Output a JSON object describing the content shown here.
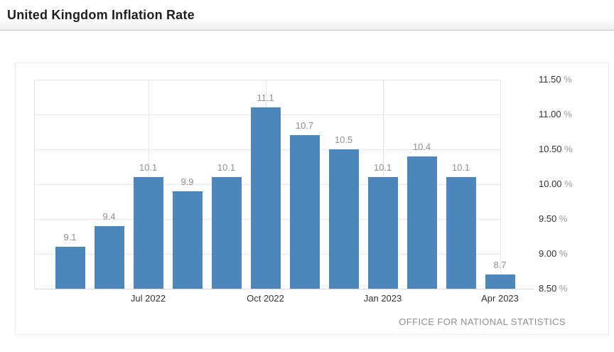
{
  "header": {
    "title": "United Kingdom Inflation Rate"
  },
  "chart": {
    "attribution": "OFFICE FOR NATIONAL STATISTICS",
    "colors": {
      "bar": "#4d86ba",
      "grid": "#e6e6e6",
      "baseline": "#d8d8d8",
      "data_label": "#8f8f8f",
      "tick_number": "#333333",
      "percent_suffix": "#999999",
      "attribution_text": "#8f8f8f",
      "title_text": "#1f1f1f"
    }
  },
  "chart_data": {
    "type": "bar",
    "title": "United Kingdom Inflation Rate",
    "values": [
      9.1,
      9.4,
      10.1,
      9.9,
      10.1,
      11.1,
      10.7,
      10.5,
      10.1,
      10.4,
      10.1,
      8.7
    ],
    "data_labels": [
      "9.1",
      "9.4",
      "10.1",
      "9.9",
      "10.1",
      "11.1",
      "10.7",
      "10.5",
      "10.1",
      "10.4",
      "10.1",
      "8.7"
    ],
    "x_ticks": [
      {
        "index": 2,
        "label": "Jul 2022"
      },
      {
        "index": 5,
        "label": "Oct 2022"
      },
      {
        "index": 8,
        "label": "Jan 2023"
      },
      {
        "index": 11,
        "label": "Apr 2023"
      }
    ],
    "y_ticks": [
      {
        "value": 11.5,
        "label": "11.50",
        "suffix": " %"
      },
      {
        "value": 11.0,
        "label": "11.00",
        "suffix": " %"
      },
      {
        "value": 10.5,
        "label": "10.50",
        "suffix": " %"
      },
      {
        "value": 10.0,
        "label": "10.00",
        "suffix": " %"
      },
      {
        "value": 9.5,
        "label": "9.50",
        "suffix": " %"
      },
      {
        "value": 9.0,
        "label": "9.00",
        "suffix": " %"
      },
      {
        "value": 8.5,
        "label": "8.50",
        "suffix": " %"
      }
    ],
    "ylim": [
      8.5,
      11.5
    ],
    "grid": true,
    "legend": false,
    "yaxis_position": "right"
  }
}
